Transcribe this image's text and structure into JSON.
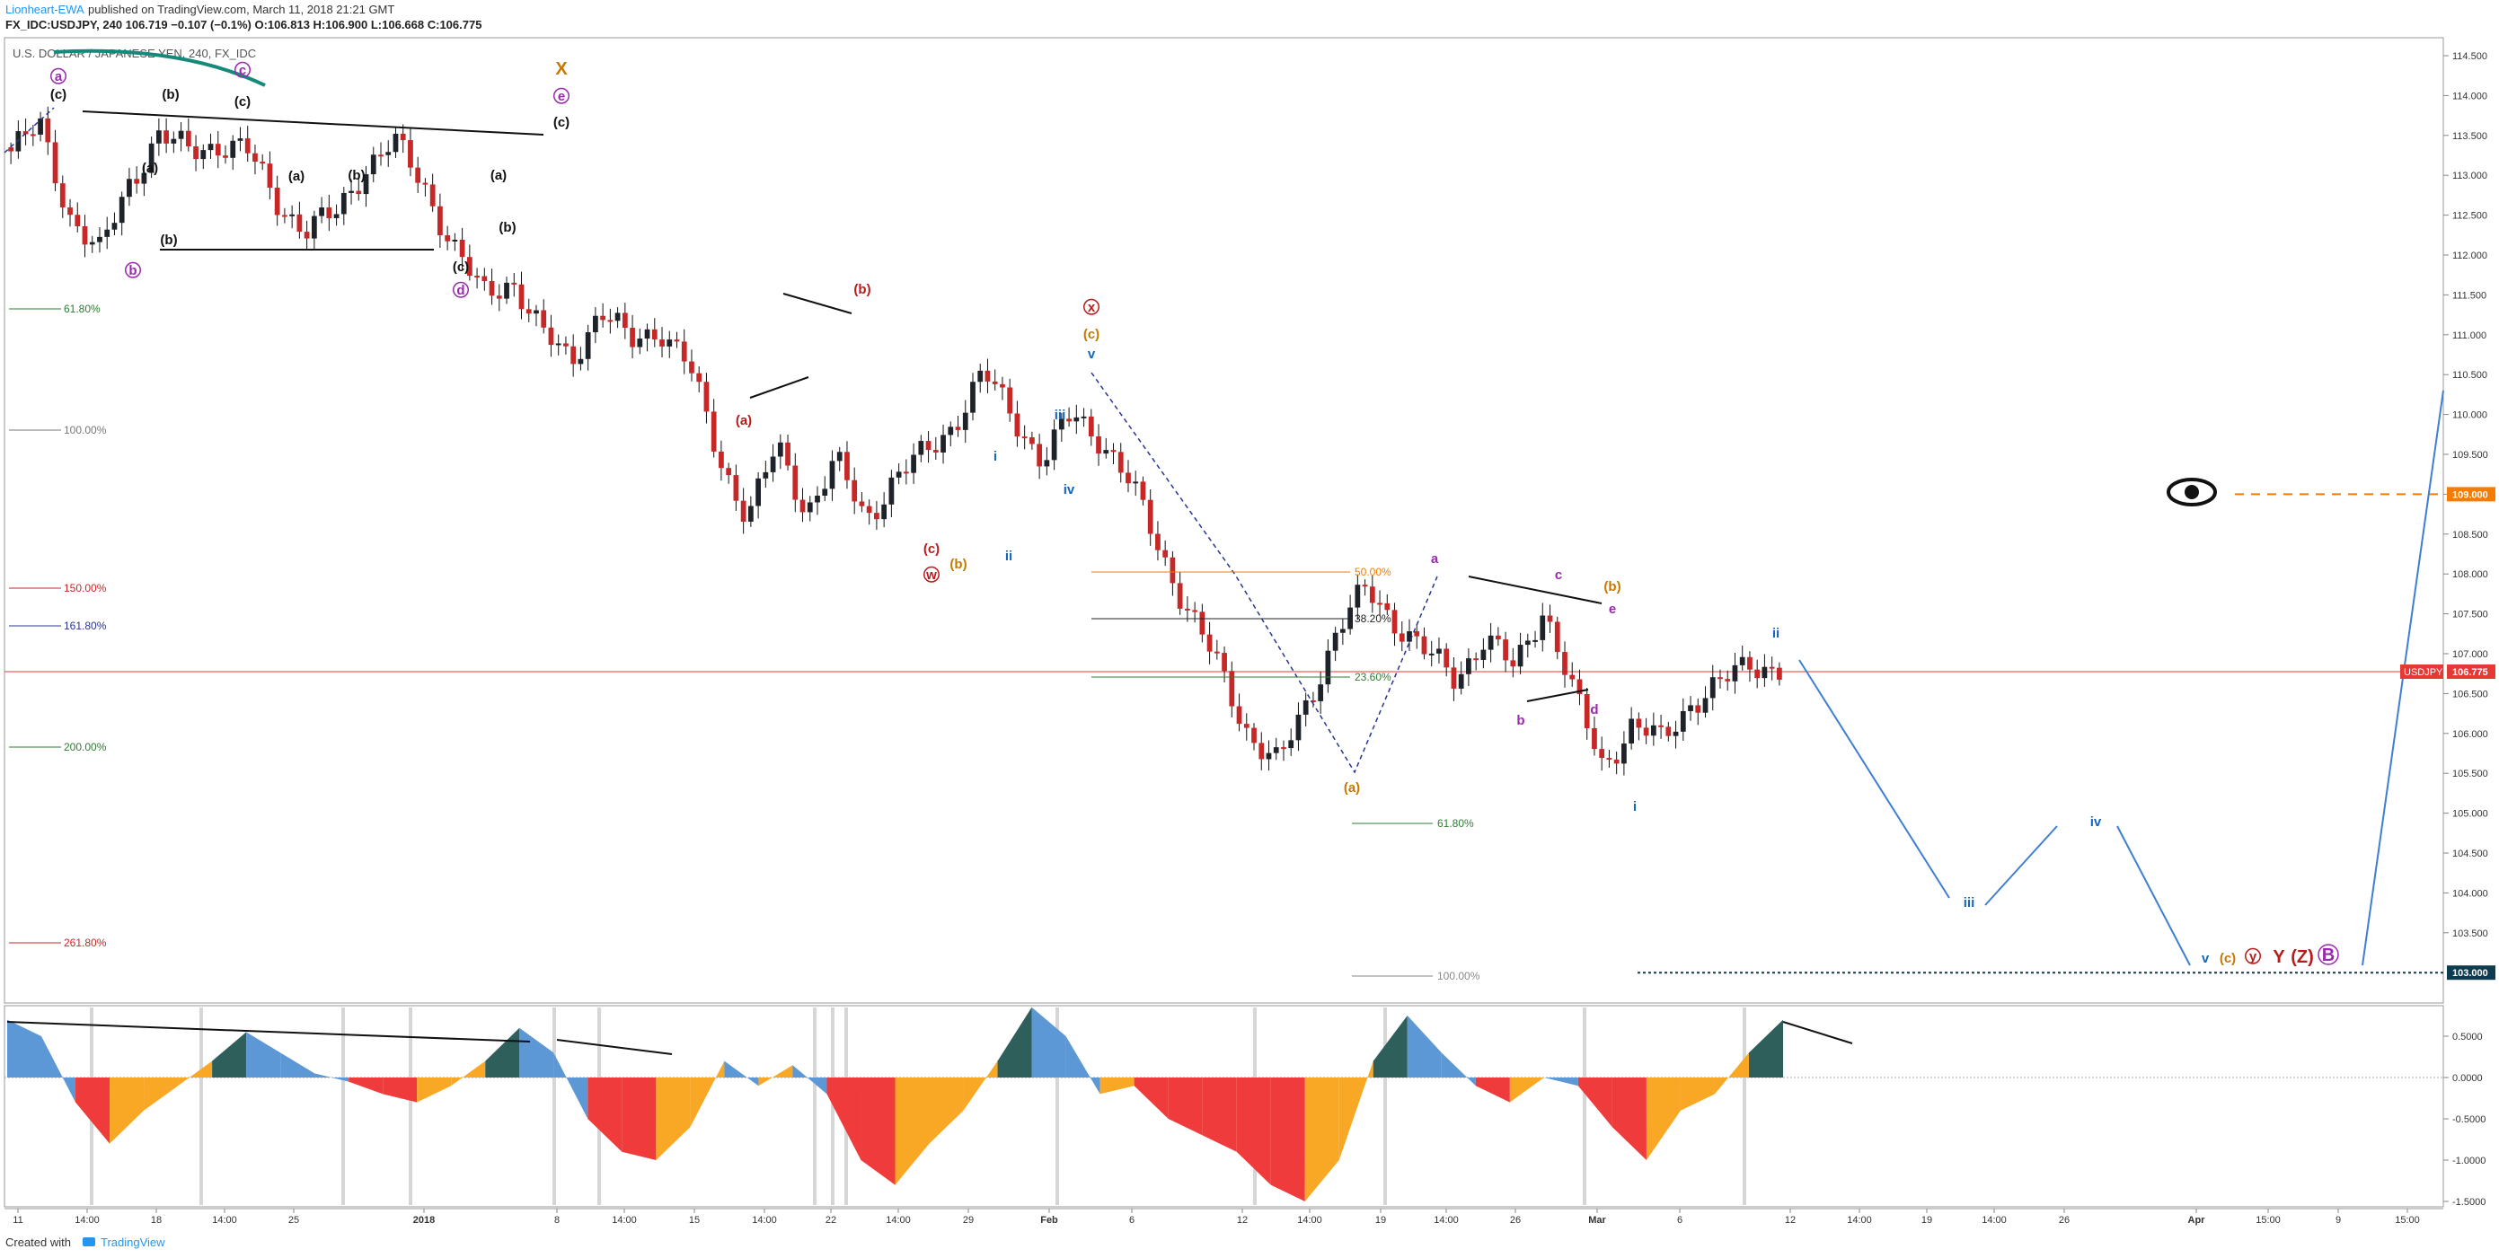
{
  "header": {
    "author": "Lionheart-EWA",
    "published": "published on TradingView.com, March 11, 2018 21:21 GMT",
    "quote": "FX_IDC:USDJPY, 240  106.719  −0.107 (−0.1%)  O:106.813  H:106.900  L:106.668  C:106.775",
    "symbol_desc": "U.S. DOLLAR / JAPANESE YEN, 240, FX_IDC"
  },
  "footer": {
    "created_with": "Created with",
    "brand": "TradingView"
  },
  "colors": {
    "up": "#1e2329",
    "down": "#c62828",
    "wave_blue": "#1565c0",
    "wave_red": "#b71c1c",
    "wave_orange": "#c77800",
    "wave_purple": "#9c27b0",
    "osc_blue": "#5c97d6",
    "osc_teal": "#2f5f5b",
    "osc_red": "#ef3b3b",
    "osc_orange": "#f9a825",
    "price_line": "#e53935"
  },
  "chart_data": [
    {
      "type": "line",
      "title": "",
      "series": [
        {
          "name": "USDJPY",
          "values": [
            113.3,
            113.6,
            112.5,
            112.0,
            112.9,
            113.5,
            113.3,
            113.4,
            113.3,
            112.7,
            112.3,
            112.5,
            113.1,
            113.4,
            112.9,
            112.1,
            111.5,
            111.7,
            111.0,
            110.7,
            111.3,
            110.9,
            111.1,
            110.6,
            109.5,
            108.7,
            109.6,
            108.8,
            109.4,
            108.7,
            109.2,
            109.5,
            109.9,
            110.5,
            110.0,
            109.4,
            110.0,
            109.7,
            109.1,
            108.3,
            107.5,
            106.8,
            106.0,
            105.6,
            106.4,
            107.3,
            107.8,
            107.4,
            107.0,
            106.7,
            107.2,
            106.8,
            107.6,
            106.5,
            105.6,
            106.1,
            105.9,
            106.4,
            106.6,
            106.9,
            106.8
          ]
        }
      ],
      "ylim": [
        102.85,
        114.75
      ],
      "yticks": [
        "114.500",
        "114.000",
        "113.500",
        "113.000",
        "112.500",
        "112.000",
        "111.500",
        "111.000",
        "110.500",
        "110.000",
        "109.500",
        "109.000",
        "108.500",
        "108.000",
        "107.500",
        "107.000",
        "106.500",
        "106.000",
        "105.500",
        "105.000",
        "104.500",
        "104.000",
        "103.500"
      ],
      "xticks": [
        "11",
        "14:00",
        "18",
        "14:00",
        "25",
        "2018",
        "8",
        "14:00",
        "15",
        "14:00",
        "22",
        "14:00",
        "29",
        "Feb",
        "6",
        "12",
        "14:00",
        "19",
        "14:00",
        "26",
        "Mar",
        "6",
        "12",
        "14:00",
        "19",
        "14:00",
        "26",
        "Apr",
        "15:00",
        "9",
        "15:00"
      ],
      "price_tag": "106.775",
      "price_tag_label": "USDJPY",
      "target_tag": "109.000",
      "low_tag": "103.000",
      "fib_left": [
        "61.80%",
        "100.00%",
        "150.00%",
        "161.80%",
        "200.00%",
        "261.80%"
      ],
      "fib_right": [
        "50.00%",
        "38.20%",
        "23.60%",
        "61.80%",
        "100.00%"
      ],
      "wave_labels": [
        "a",
        "(c)",
        "c",
        "(b)",
        "(a)",
        "(c)",
        "b",
        "(b)",
        "X",
        "e",
        "(c)",
        "(a)",
        "(b)",
        "(c)",
        "d",
        "(b)",
        "(a)",
        "(b)",
        "x",
        "(c)",
        "v",
        "(a)",
        "i",
        "iii",
        "iv",
        "ii",
        "(c)",
        "w",
        "(b)",
        "a",
        "c",
        "(b)",
        "e",
        "ii",
        "b",
        "d",
        "(a)",
        "i",
        "iii",
        "iv",
        "v",
        "(c)",
        "y",
        "Y",
        "(Z)",
        "B"
      ]
    },
    {
      "type": "area",
      "title": "",
      "yticks": [
        "0.5000",
        "0.0000",
        "-0.5000",
        "-1.0000",
        "-1.5000"
      ],
      "ylim": [
        -1.85,
        0.95
      ],
      "series": [
        {
          "name": "",
          "values": [
            0.7,
            0.5,
            -0.3,
            -0.8,
            -0.4,
            -0.1,
            0.2,
            0.55,
            0.3,
            0.05,
            -0.05,
            -0.2,
            -0.3,
            -0.1,
            0.2,
            0.6,
            0.3,
            -0.5,
            -0.9,
            -1.0,
            -0.6,
            0.2,
            -0.1,
            0.15,
            -0.2,
            -1.0,
            -1.3,
            -0.8,
            -0.4,
            0.2,
            0.85,
            0.5,
            -0.2,
            -0.1,
            -0.5,
            -0.7,
            -0.9,
            -1.3,
            -1.5,
            -1.0,
            0.2,
            0.75,
            0.3,
            -0.1,
            -0.3,
            0.0,
            -0.1,
            -0.6,
            -1.0,
            -0.4,
            -0.2,
            0.3,
            0.7
          ]
        }
      ]
    }
  ]
}
